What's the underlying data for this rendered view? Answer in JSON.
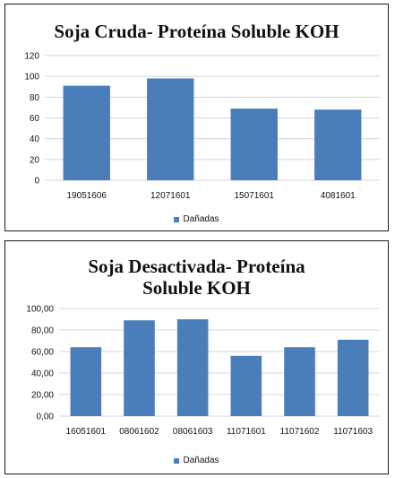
{
  "chart_data": [
    {
      "type": "bar",
      "title": "Soja Cruda- Proteína Soluble KOH",
      "categories": [
        "19051606",
        "12071601",
        "15071601",
        "4081601"
      ],
      "series": [
        {
          "name": "Dañadas",
          "values": [
            91,
            98,
            69,
            68
          ]
        }
      ],
      "yticks": [
        "0",
        "20",
        "40",
        "60",
        "80",
        "100",
        "120"
      ],
      "ylim": [
        0,
        120
      ],
      "grid": true,
      "legend": "bottom",
      "color": "#4a7ebb"
    },
    {
      "type": "bar",
      "title": "Soja Desactivada- Proteína Soluble KOH",
      "title_lines": [
        "Soja Desactivada- Proteína",
        "Soluble KOH"
      ],
      "categories": [
        "16051601",
        "08061602",
        "08061603",
        "11071601",
        "11071602",
        "11071603"
      ],
      "series": [
        {
          "name": "Dañadas",
          "values": [
            64,
            89,
            90,
            56,
            64,
            71
          ]
        }
      ],
      "yticks": [
        "0,00",
        "20,00",
        "40,00",
        "60,00",
        "80,00",
        "100,00"
      ],
      "ylim": [
        0,
        100
      ],
      "grid": true,
      "legend": "bottom",
      "color": "#4a7ebb"
    }
  ]
}
